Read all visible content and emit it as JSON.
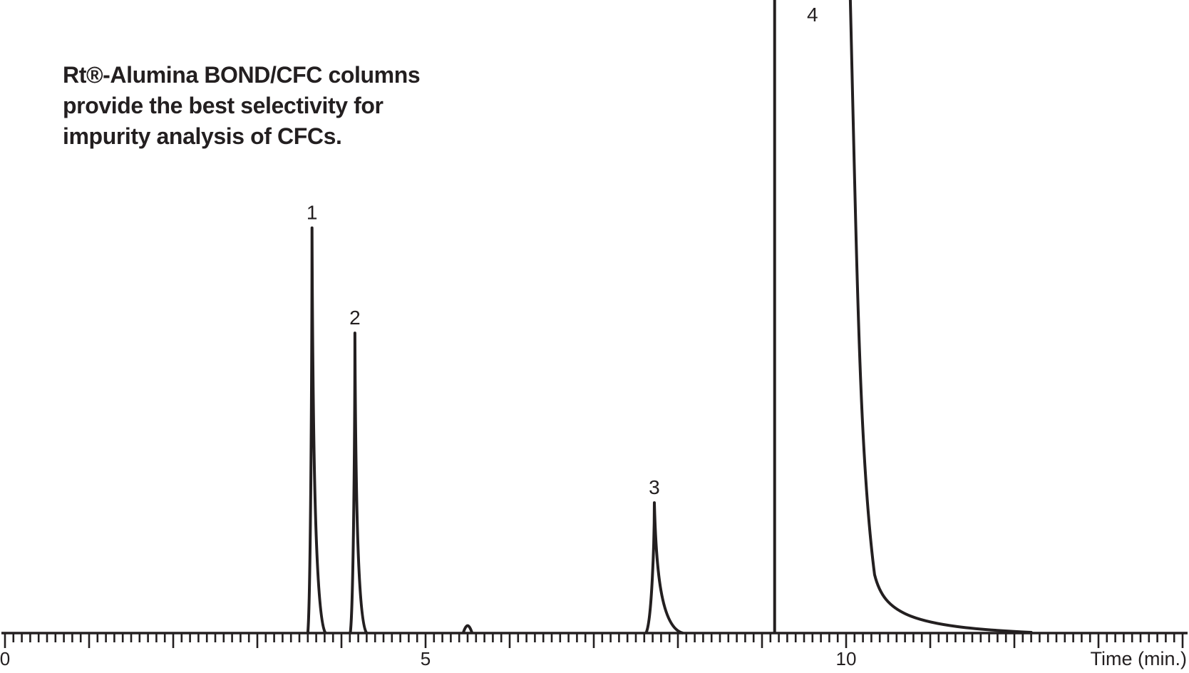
{
  "colors": {
    "ink": "#231f20",
    "background": "#ffffff"
  },
  "title": {
    "lines": [
      "Rt®-Alumina BOND/CFC columns",
      "provide the best selectivity for",
      "impurity analysis of CFCs."
    ]
  },
  "chart_data": {
    "type": "line",
    "subtype": "gc-chromatogram",
    "title": "Rt®-Alumina BOND/CFC columns provide the best selectivity for impurity analysis of CFCs.",
    "xlabel": "Time (min.)",
    "ylabel": "",
    "grid": false,
    "legend": "none",
    "x_axis": {
      "min": 0,
      "max": 14.0,
      "minor_tick": 0.1,
      "major_tick": 1.0,
      "labeled_ticks": [
        {
          "t": 0,
          "label": "0"
        },
        {
          "t": 5,
          "label": "5"
        },
        {
          "t": 10,
          "label": "10"
        }
      ]
    },
    "y_axis": {
      "shown": false,
      "note": "detector response, unlabeled scale"
    },
    "peaks": [
      {
        "label": "1",
        "time_min": 3.65,
        "height_frac": 0.64,
        "lead_width_min": 0.05,
        "tail_width_min": 0.16,
        "clipped": false
      },
      {
        "label": "2",
        "time_min": 4.16,
        "height_frac": 0.474,
        "lead_width_min": 0.055,
        "tail_width_min": 0.14,
        "clipped": false
      },
      {
        "label": "3",
        "time_min": 7.72,
        "height_frac": 0.206,
        "lead_width_min": 0.1,
        "tail_width_min": 0.34,
        "clipped": false
      },
      {
        "label": "4",
        "time_min": 9.15,
        "height_frac": 1.0,
        "clipped": true,
        "off_scale": true,
        "trail_time_min": 10.05,
        "tail_end_min": 12.2
      }
    ],
    "baseline_blip": {
      "time_min": 5.5,
      "height_frac": 0.008,
      "width_min": 0.1
    }
  }
}
